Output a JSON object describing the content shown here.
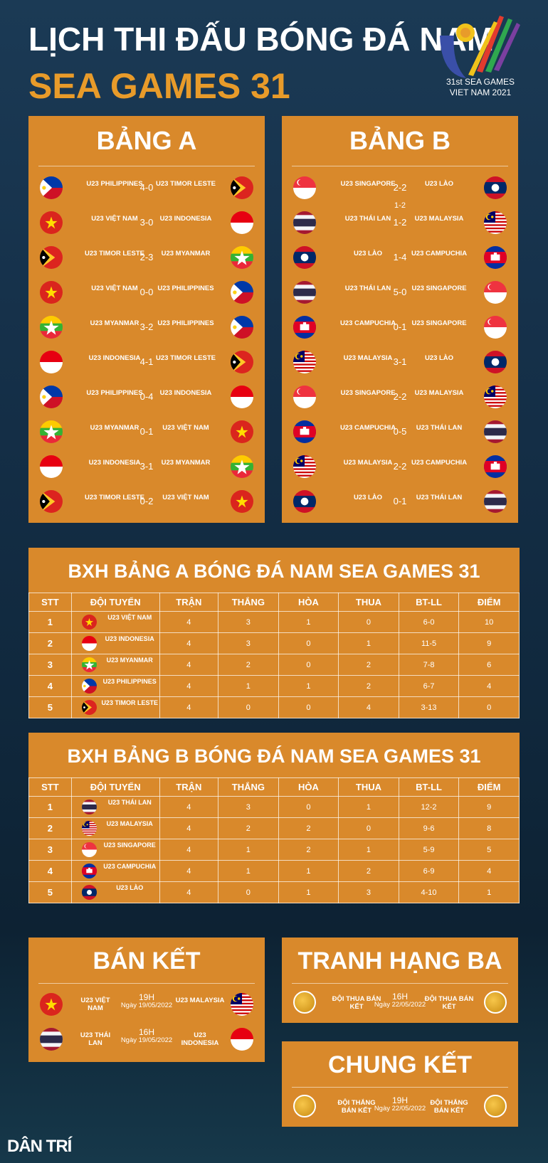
{
  "header": {
    "title_line1": "LỊCH THI ĐẤU BÓNG ĐÁ NAM",
    "title_line2": "SEA GAMES 31",
    "logo_line1": "31st SEA GAMES",
    "logo_line2": "VIET NAM 2021"
  },
  "group_a": {
    "title": "BẢNG A",
    "matches": [
      {
        "home": "U23 PHILIPPINES",
        "home_flag": "philippines",
        "score": "4-0",
        "away": "U23 TIMOR LESTE",
        "away_flag": "timor"
      },
      {
        "home": "U23 VIỆT NAM",
        "home_flag": "vietnam",
        "score": "3-0",
        "away": "U23 INDONESIA",
        "away_flag": "indonesia"
      },
      {
        "home": "U23 TIMOR LESTE",
        "home_flag": "timor",
        "score": "2-3",
        "away": "U23 MYANMAR",
        "away_flag": "myanmar"
      },
      {
        "home": "U23 VIỆT NAM",
        "home_flag": "vietnam",
        "score": "0-0",
        "away": "U23 PHILIPPINES",
        "away_flag": "philippines"
      },
      {
        "home": "U23 MYANMAR",
        "home_flag": "myanmar",
        "score": "3-2",
        "away": "U23 PHILIPPINES",
        "away_flag": "philippines"
      },
      {
        "home": "U23 INDONESIA",
        "home_flag": "indonesia",
        "score": "4-1",
        "away": "U23 TIMOR LESTE",
        "away_flag": "timor"
      },
      {
        "home": "U23 PHILIPPINES",
        "home_flag": "philippines",
        "score": "0-4",
        "away": "U23 INDONESIA",
        "away_flag": "indonesia"
      },
      {
        "home": "U23 MYANMAR",
        "home_flag": "myanmar",
        "score": "0-1",
        "away": "U23 VIỆT NAM",
        "away_flag": "vietnam"
      },
      {
        "home": "U23 INDONESIA",
        "home_flag": "indonesia",
        "score": "3-1",
        "away": "U23 MYANMAR",
        "away_flag": "myanmar"
      },
      {
        "home": "U23 TIMOR LESTE",
        "home_flag": "timor",
        "score": "0-2",
        "away": "U23 VIỆT NAM",
        "away_flag": "vietnam"
      }
    ]
  },
  "group_b": {
    "title": "BẢNG B",
    "matches": [
      {
        "home": "U23 SINGAPORE",
        "home_flag": "singapore",
        "score": "2-2",
        "away": "U23 LÀO",
        "away_flag": "laos"
      },
      {
        "home": "U23 THÁI LAN",
        "home_flag": "thailand",
        "score": "1-2",
        "extra": "1-2",
        "away": "U23 MALAYSIA",
        "away_flag": "malaysia"
      },
      {
        "home": "U23 LÀO",
        "home_flag": "laos",
        "score": "1-4",
        "away": "U23 CAMPUCHIA",
        "away_flag": "cambodia"
      },
      {
        "home": "U23 THÁI LAN",
        "home_flag": "thailand",
        "score": "5-0",
        "away": "U23 SINGAPORE",
        "away_flag": "singapore"
      },
      {
        "home": "U23 CAMPUCHIA",
        "home_flag": "cambodia",
        "score": "0-1",
        "away": "U23 SINGAPORE",
        "away_flag": "singapore"
      },
      {
        "home": "U23 MALAYSIA",
        "home_flag": "malaysia",
        "score": "3-1",
        "away": "U23 LÀO",
        "away_flag": "laos"
      },
      {
        "home": "U23 SINGAPORE",
        "home_flag": "singapore",
        "score": "2-2",
        "away": "U23 MALAYSIA",
        "away_flag": "malaysia"
      },
      {
        "home": "U23 CAMPUCHIA",
        "home_flag": "cambodia",
        "score": "0-5",
        "away": "U23 THÁI LAN",
        "away_flag": "thailand"
      },
      {
        "home": "U23 MALAYSIA",
        "home_flag": "malaysia",
        "score": "2-2",
        "away": "U23 CAMPUCHIA",
        "away_flag": "cambodia"
      },
      {
        "home": "U23 LÀO",
        "home_flag": "laos",
        "score": "0-1",
        "away": "U23 THÁI LAN",
        "away_flag": "thailand"
      }
    ]
  },
  "standings_headers": [
    "STT",
    "ĐỘI TUYỂN",
    "TRẬN",
    "THẮNG",
    "HÒA",
    "THUA",
    "BT-LL",
    "ĐIỂM"
  ],
  "standings_a": {
    "title": "BXH BẢNG A BÓNG ĐÁ NAM SEA GAMES 31",
    "rows": [
      {
        "stt": "1",
        "team": "U23 VIỆT NAM",
        "flag": "vietnam",
        "played": "4",
        "won": "3",
        "drawn": "1",
        "lost": "0",
        "goals": "6-0",
        "points": "10"
      },
      {
        "stt": "2",
        "team": "U23 INDONESIA",
        "flag": "indonesia",
        "played": "4",
        "won": "3",
        "drawn": "0",
        "lost": "1",
        "goals": "11-5",
        "points": "9"
      },
      {
        "stt": "3",
        "team": "U23 MYANMAR",
        "flag": "myanmar",
        "played": "4",
        "won": "2",
        "drawn": "0",
        "lost": "2",
        "goals": "7-8",
        "points": "6"
      },
      {
        "stt": "4",
        "team": "U23 PHILIPPINES",
        "flag": "philippines",
        "played": "4",
        "won": "1",
        "drawn": "1",
        "lost": "2",
        "goals": "6-7",
        "points": "4"
      },
      {
        "stt": "5",
        "team": "U23 TIMOR LESTE",
        "flag": "timor",
        "played": "4",
        "won": "0",
        "drawn": "0",
        "lost": "4",
        "goals": "3-13",
        "points": "0"
      }
    ]
  },
  "standings_b": {
    "title": "BXH BẢNG B BÓNG ĐÁ NAM SEA GAMES 31",
    "rows": [
      {
        "stt": "1",
        "team": "U23 THÁI LAN",
        "flag": "thailand",
        "played": "4",
        "won": "3",
        "drawn": "0",
        "lost": "1",
        "goals": "12-2",
        "points": "9"
      },
      {
        "stt": "2",
        "team": "U23 MALAYSIA",
        "flag": "malaysia",
        "played": "4",
        "won": "2",
        "drawn": "2",
        "lost": "0",
        "goals": "9-6",
        "points": "8"
      },
      {
        "stt": "3",
        "team": "U23 SINGAPORE",
        "flag": "singapore",
        "played": "4",
        "won": "1",
        "drawn": "2",
        "lost": "1",
        "goals": "5-9",
        "points": "5"
      },
      {
        "stt": "4",
        "team": "U23 CAMPUCHIA",
        "flag": "cambodia",
        "played": "4",
        "won": "1",
        "drawn": "1",
        "lost": "2",
        "goals": "6-9",
        "points": "4"
      },
      {
        "stt": "5",
        "team": "U23 LÀO",
        "flag": "laos",
        "played": "4",
        "won": "0",
        "drawn": "1",
        "lost": "3",
        "goals": "4-10",
        "points": "1"
      }
    ]
  },
  "semifinal": {
    "title": "BÁN KẾT",
    "matches": [
      {
        "home": "U23 VIỆT NAM",
        "home_flag": "vietnam",
        "time": "19H",
        "date": "Ngày 19/05/2022",
        "away": "U23 MALAYSIA",
        "away_flag": "malaysia"
      },
      {
        "home": "U23 THÁI LAN",
        "home_flag": "thailand",
        "time": "16H",
        "date": "Ngày 19/05/2022",
        "away": "U23 INDONESIA",
        "away_flag": "indonesia"
      }
    ]
  },
  "third_place": {
    "title": "TRANH HẠNG BA",
    "home": "ĐỘI THUA BÁN KẾT",
    "time": "16H",
    "date": "Ngày 22/05/2022",
    "away": "ĐỘI THUA BÁN KẾT"
  },
  "final": {
    "title": "CHUNG KẾT",
    "home": "ĐỘI THẮNG BÁN KẾT",
    "time": "19H",
    "date": "Ngày 22/05/2022",
    "away": "ĐỘI THẮNG BÁN KẾT"
  },
  "footer": {
    "brand": "DÂN TRÍ"
  }
}
